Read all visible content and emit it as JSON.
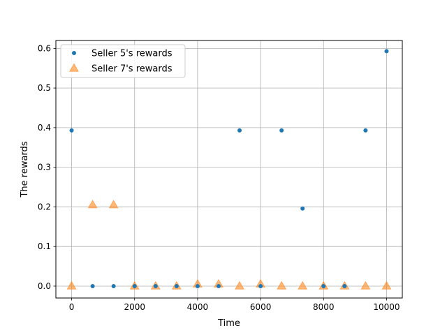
{
  "chart_data": {
    "type": "scatter",
    "xlabel": "Time",
    "ylabel": "The rewards",
    "xlim": [
      -500,
      10500
    ],
    "ylim": [
      -0.03,
      0.62
    ],
    "xticks": [
      0,
      2000,
      4000,
      6000,
      8000,
      10000
    ],
    "yticks": [
      0.0,
      0.1,
      0.2,
      0.3,
      0.4,
      0.5,
      0.6
    ],
    "grid": true,
    "legend_position": "top-left",
    "series": [
      {
        "name": "Seller 5's rewards",
        "marker": "circle",
        "color": "#1f77b4",
        "x": [
          0,
          667,
          1333,
          2000,
          2667,
          3333,
          4000,
          4667,
          5333,
          6000,
          6667,
          7333,
          8000,
          8667,
          9333,
          10000
        ],
        "y": [
          0.393,
          0.0,
          0.0,
          0.0,
          0.0,
          0.0,
          0.0,
          0.0,
          0.393,
          0.0,
          0.393,
          0.196,
          0.0,
          0.0,
          0.393,
          0.593
        ]
      },
      {
        "name": "Seller 7's rewards",
        "marker": "triangle",
        "color": "#ff7f0e",
        "x": [
          0,
          667,
          1333,
          2000,
          2667,
          3333,
          4000,
          4667,
          5333,
          6000,
          6667,
          7333,
          8000,
          8667,
          9333,
          10000
        ],
        "y": [
          0.0,
          0.205,
          0.205,
          0.0,
          0.0,
          0.0,
          0.005,
          0.005,
          0.0,
          0.005,
          0.0,
          0.0,
          0.0,
          0.0,
          0.0,
          0.0
        ]
      }
    ]
  }
}
